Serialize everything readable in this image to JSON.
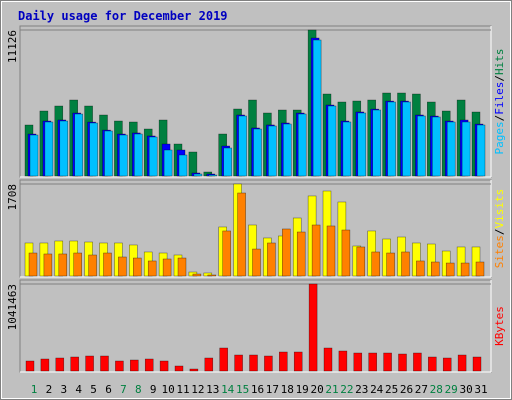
{
  "chart_data": [
    {
      "type": "bar",
      "title": "Daily usage for December 2019",
      "categories": [
        "1",
        "2",
        "3",
        "4",
        "5",
        "6",
        "7",
        "8",
        "9",
        "10",
        "11",
        "12",
        "13",
        "14",
        "15",
        "16",
        "17",
        "18",
        "19",
        "20",
        "21",
        "22",
        "23",
        "24",
        "25",
        "26",
        "27",
        "28",
        "29",
        "30",
        "31"
      ],
      "category_colors": [
        "#008040",
        "#000000",
        "#000000",
        "#000000",
        "#000000",
        "#000000",
        "#008040",
        "#008040",
        "#000000",
        "#000000",
        "#000000",
        "#000000",
        "#000000",
        "#008040",
        "#008040",
        "#000000",
        "#000000",
        "#000000",
        "#000000",
        "#000000",
        "#008040",
        "#008040",
        "#000000",
        "#000000",
        "#000000",
        "#000000",
        "#000000",
        "#008040",
        "#008040",
        "#000000",
        "#000000"
      ],
      "legend_separator": "/",
      "ylim": [
        0,
        11126
      ],
      "yticks": [
        11126
      ],
      "series": [
        {
          "name": "Hits",
          "color": "#008040",
          "values": [
            3886,
            4953,
            5334,
            5791,
            5334,
            4648,
            4191,
            4115,
            3581,
            4267,
            2438,
            1829,
            305,
            3200,
            5105,
            5791,
            4801,
            5029,
            5029,
            11126,
            6248,
            5639,
            5715,
            5791,
            6325,
            6325,
            6248,
            5639,
            4953,
            5791,
            4877
          ]
        },
        {
          "name": "Files",
          "color": "#0000ff",
          "values": [
            3200,
            4190,
            4270,
            4800,
            4110,
            3500,
            3200,
            3280,
            3050,
            2438,
            1981,
            230,
            152,
            2286,
            4650,
            3660,
            3890,
            4040,
            4800,
            10516,
            5410,
            4190,
            4880,
            5100,
            5710,
            5710,
            4650,
            4570,
            4190,
            4267,
            3960
          ]
        },
        {
          "name": "Pages",
          "color": "#00c0ff",
          "values": [
            3124,
            4115,
            4191,
            4724,
            4039,
            3429,
            3124,
            3200,
            2972,
            1981,
            1600,
            152,
            76,
            2134,
            4572,
            3581,
            3810,
            3962,
            4724,
            10363,
            5334,
            4115,
            4801,
            5029,
            5639,
            5639,
            4572,
            4496,
            4115,
            4115,
            3886
          ]
        }
      ]
    },
    {
      "type": "bar",
      "ylim": [
        0,
        1708
      ],
      "yticks": [
        1708
      ],
      "series": [
        {
          "name": "Visits",
          "color": "#ffff00",
          "values": [
            613,
            613,
            650,
            650,
            631,
            613,
            613,
            576,
            446,
            427,
            390,
            74,
            56,
            910,
            1708,
            947,
            706,
            743,
            1077,
            1486,
            1578,
            1374,
            557,
            836,
            687,
            724,
            613,
            594,
            464,
            539,
            539
          ]
        },
        {
          "name": "Sites",
          "color": "#ff8000",
          "values": [
            427,
            409,
            409,
            427,
            390,
            427,
            353,
            334,
            279,
            316,
            334,
            37,
            19,
            836,
            1541,
            501,
            613,
            873,
            817,
            947,
            929,
            854,
            539,
            446,
            427,
            446,
            279,
            260,
            241,
            241,
            260
          ]
        }
      ]
    },
    {
      "type": "bar",
      "ylim": [
        0,
        1041463
      ],
      "yticks": [
        1041463
      ],
      "series": [
        {
          "name": "KBytes",
          "color": "#ff0000",
          "values": [
            119710,
            143652,
            155623,
            167594,
            179565,
            179565,
            119710,
            131681,
            143652,
            119710,
            59855,
            23942,
            155623,
            275333,
            191536,
            191536,
            179565,
            227449,
            227449,
            1041463,
            275333,
            239420,
            215478,
            215478,
            215478,
            203507,
            215478,
            167594,
            155623,
            191536,
            167594
          ]
        }
      ]
    }
  ]
}
